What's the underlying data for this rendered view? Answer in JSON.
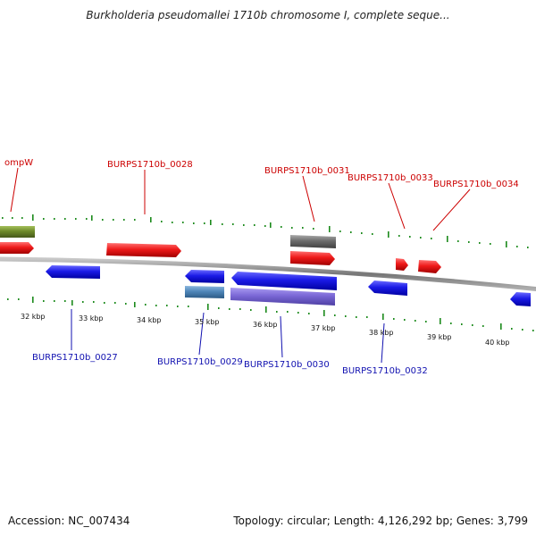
{
  "title": "Burkholderia pseudomallei 1710b chromosome I, complete seque...",
  "footer": {
    "accession": "Accession: NC_007434",
    "summary": "Topology: circular; Length: 4,126,292 bp; Genes: 3,799"
  },
  "colors": {
    "forward_gene": "#e41a1a",
    "reverse_gene": "#1a1ae6",
    "pseudo_gene": "#6b6b6b",
    "rna_gene": "#6e8a2a",
    "steel_gene": "#4f86b8",
    "violet_gene": "#7b68d6",
    "backbone": "#888888",
    "gc_ticks": "#1c8a1c",
    "label_forward": "#cc0000",
    "label_reverse": "#1010b0"
  },
  "scale_labels": [
    "32 kbp",
    "33 kbp",
    "34 kbp",
    "35 kbp",
    "36 kbp",
    "37 kbp",
    "38 kbp",
    "39 kbp",
    "40 kbp"
  ],
  "gene_labels_top": [
    "ompW",
    "BURPS1710b_0028",
    "BURPS1710b_0031",
    "BURPS1710b_0033",
    "BURPS1710b_0034"
  ],
  "gene_labels_bottom": [
    "BURPS1710b_0027",
    "BURPS1710b_0029",
    "BURPS1710b_0030",
    "BURPS1710b_0032"
  ]
}
